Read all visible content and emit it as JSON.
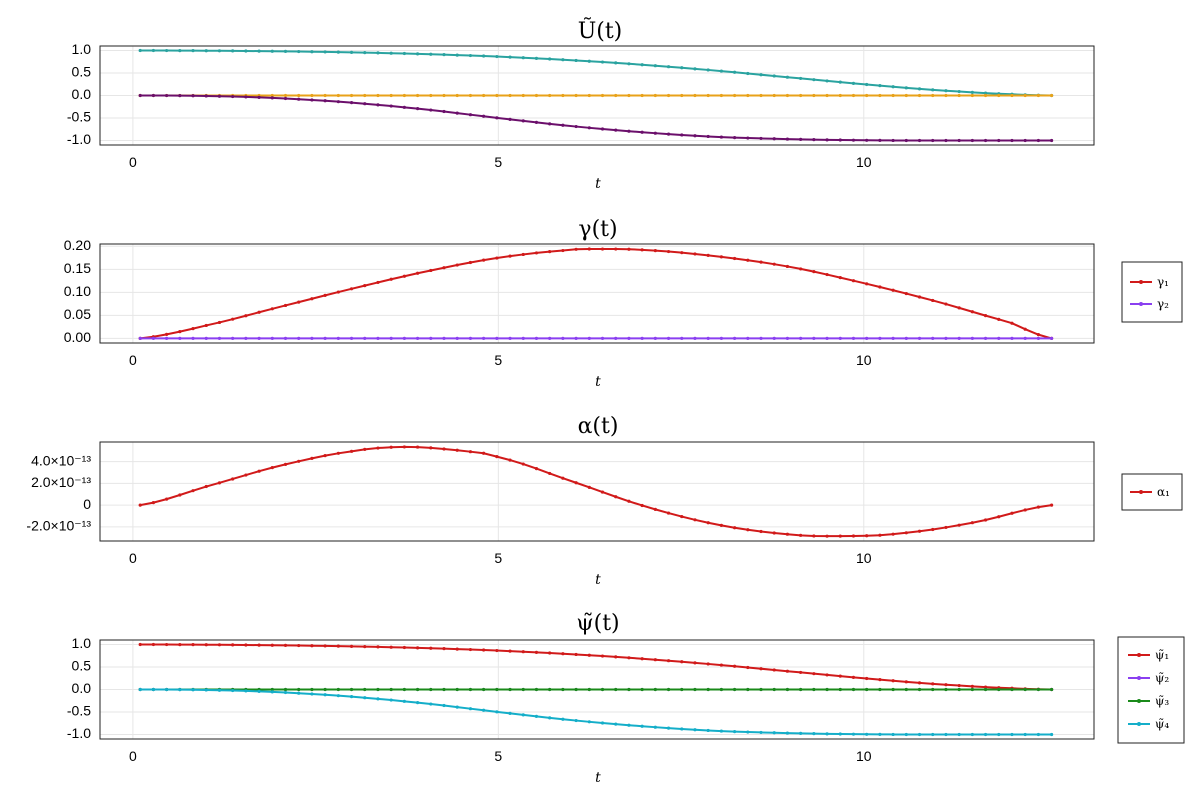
{
  "chart_data": [
    {
      "type": "line",
      "title": "Ũ(t)",
      "xlabel": "t",
      "ylabel": "",
      "xlim": [
        -0.45,
        13.15
      ],
      "ylim": [
        -1.1,
        1.1
      ],
      "x_ticks": [
        0,
        5,
        10
      ],
      "x_tick_labels": [
        "0",
        "5",
        "10"
      ],
      "y_ticks": [
        1.0,
        0.5,
        0.0,
        -0.5,
        -1.0
      ],
      "y_tick_labels": [
        "1.0",
        "0.5",
        "0.0",
        "-0.5",
        "-1.0"
      ],
      "grid": true,
      "legend": "none",
      "x_range": [
        0.1,
        12.57
      ],
      "series": [
        {
          "color": "#2aa3a0",
          "marker": "dot",
          "x": [
            0.1,
            1,
            2,
            3,
            4,
            5,
            6,
            7,
            8,
            9,
            10,
            11,
            12,
            12.57
          ],
          "y": [
            1,
            0.995,
            0.982,
            0.958,
            0.92,
            0.864,
            0.785,
            0.68,
            0.55,
            0.4,
            0.25,
            0.12,
            0.03,
            0
          ]
        },
        {
          "color": "#e8a21a",
          "marker": "dot",
          "x": [
            0.1,
            12.57
          ],
          "y": [
            0,
            0
          ]
        },
        {
          "color": "#6b0f6b",
          "marker": "dot",
          "x": [
            0.1,
            1,
            2,
            3,
            4,
            5,
            6,
            7,
            8,
            9,
            10,
            11,
            12,
            12.57
          ],
          "y": [
            0,
            -0.01,
            -0.06,
            -0.16,
            -0.31,
            -0.5,
            -0.68,
            -0.82,
            -0.92,
            -0.97,
            -0.995,
            -1,
            -1,
            -1
          ]
        }
      ]
    },
    {
      "type": "line",
      "title": "γ(t)",
      "xlabel": "t",
      "ylabel": "",
      "xlim": [
        -0.45,
        13.15
      ],
      "ylim": [
        -0.01,
        0.205
      ],
      "x_ticks": [
        0,
        5,
        10
      ],
      "x_tick_labels": [
        "0",
        "5",
        "10"
      ],
      "y_ticks": [
        0.2,
        0.15,
        0.1,
        0.05,
        0.0
      ],
      "y_tick_labels": [
        "0.20",
        "0.15",
        "0.10",
        "0.05",
        "0.00"
      ],
      "grid": true,
      "legend": "right",
      "legend_entries": [
        "γ₁",
        "γ₂"
      ],
      "series": [
        {
          "name": "γ₁",
          "color": "#d11a1a",
          "marker": "dot",
          "x": [
            0.1,
            1,
            2,
            3,
            4,
            5,
            6,
            6.3,
            7,
            8,
            9,
            10,
            11,
            12,
            12.57
          ],
          "y": [
            0,
            0.028,
            0.068,
            0.108,
            0.145,
            0.175,
            0.192,
            0.194,
            0.192,
            0.178,
            0.155,
            0.12,
            0.08,
            0.035,
            0
          ]
        },
        {
          "name": "γ₂",
          "color": "#8a3ff0",
          "marker": "dot",
          "x": [
            0.1,
            12.57
          ],
          "y": [
            0,
            0
          ]
        }
      ]
    },
    {
      "type": "line",
      "title": "α(t)",
      "xlabel": "t",
      "ylabel": "",
      "xlim": [
        -0.45,
        13.15
      ],
      "ylim": [
        -3.3e-13,
        5.8e-13
      ],
      "x_ticks": [
        0,
        5,
        10
      ],
      "x_tick_labels": [
        "0",
        "5",
        "10"
      ],
      "y_ticks": [
        4e-13,
        2e-13,
        0,
        -2e-13
      ],
      "y_tick_labels": [
        "4.0×10⁻¹³",
        "2.0×10⁻¹³",
        "0",
        "-2.0×10⁻¹³"
      ],
      "grid": true,
      "legend": "right",
      "legend_entries": [
        "α₁"
      ],
      "series": [
        {
          "name": "α₁",
          "color": "#d11a1a",
          "marker": "dot",
          "x": [
            0.1,
            1,
            2,
            3,
            3.75,
            4.5,
            5,
            6,
            7,
            8,
            9,
            9.75,
            10.5,
            11.5,
            12.57
          ],
          "y": [
            0,
            1.7e-13,
            3.6e-13,
            4.95e-13,
            5.35e-13,
            5e-13,
            4.4e-13,
            2.2e-13,
            -1e-14,
            -1.8e-13,
            -2.7e-13,
            -2.85e-13,
            -2.6e-13,
            -1.6e-13,
            0
          ]
        }
      ]
    },
    {
      "type": "line",
      "title": "ψ̃(t)",
      "xlabel": "t",
      "ylabel": "",
      "xlim": [
        -0.45,
        13.15
      ],
      "ylim": [
        -1.1,
        1.1
      ],
      "x_ticks": [
        0,
        5,
        10
      ],
      "x_tick_labels": [
        "0",
        "5",
        "10"
      ],
      "y_ticks": [
        1.0,
        0.5,
        0.0,
        -0.5,
        -1.0
      ],
      "y_tick_labels": [
        "1.0",
        "0.5",
        "0.0",
        "-0.5",
        "-1.0"
      ],
      "grid": true,
      "legend": "right",
      "legend_entries": [
        "ψ̃₁",
        "ψ̃₂",
        "ψ̃₃",
        "ψ̃₄"
      ],
      "series": [
        {
          "name": "ψ̃₁",
          "color": "#d11a1a",
          "marker": "dot",
          "x": [
            0.1,
            1,
            2,
            3,
            4,
            5,
            6,
            7,
            8,
            9,
            10,
            11,
            12,
            12.57
          ],
          "y": [
            1,
            0.995,
            0.982,
            0.958,
            0.92,
            0.864,
            0.785,
            0.68,
            0.55,
            0.4,
            0.25,
            0.12,
            0.03,
            0
          ]
        },
        {
          "name": "ψ̃₂",
          "color": "#8a3ff0",
          "marker": "dot",
          "x": [
            0.1,
            12.57
          ],
          "y": [
            0,
            0
          ]
        },
        {
          "name": "ψ̃₃",
          "color": "#1a8a1a",
          "marker": "dot",
          "x": [
            0.1,
            12.57
          ],
          "y": [
            0,
            0
          ]
        },
        {
          "name": "ψ̃₄",
          "color": "#14aec9",
          "marker": "dot",
          "x": [
            0.1,
            1,
            2,
            3,
            4,
            5,
            6,
            7,
            8,
            9,
            10,
            11,
            12,
            12.57
          ],
          "y": [
            0,
            -0.01,
            -0.06,
            -0.16,
            -0.31,
            -0.5,
            -0.68,
            -0.82,
            -0.92,
            -0.97,
            -0.995,
            -1,
            -1,
            -1
          ]
        }
      ]
    }
  ]
}
